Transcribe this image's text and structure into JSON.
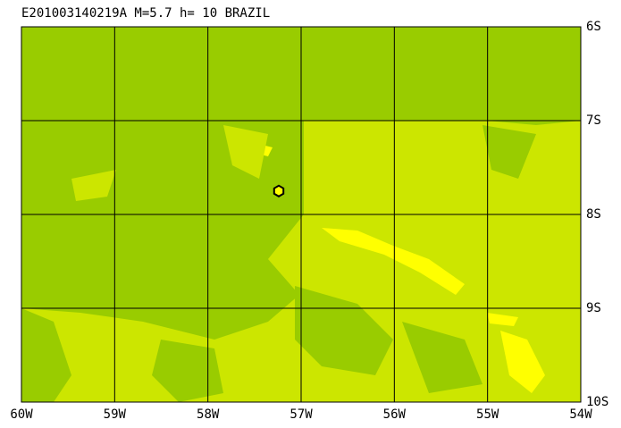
{
  "map": {
    "title": "E201003140219A  M=5.7  h= 10  BRAZIL",
    "xlim": [
      -60,
      -54
    ],
    "ylim": [
      -10,
      -6
    ],
    "xticks": [
      {
        "value": -60,
        "label": "60W"
      },
      {
        "value": -59,
        "label": "59W"
      },
      {
        "value": -58,
        "label": "58W"
      },
      {
        "value": -57,
        "label": "57W"
      },
      {
        "value": -56,
        "label": "56W"
      },
      {
        "value": -55,
        "label": "55W"
      },
      {
        "value": -54,
        "label": "54W"
      }
    ],
    "yticks": [
      {
        "value": -6,
        "label": "6S"
      },
      {
        "value": -7,
        "label": "7S"
      },
      {
        "value": -8,
        "label": "8S"
      },
      {
        "value": -9,
        "label": "9S"
      },
      {
        "value": -10,
        "label": "10S"
      }
    ],
    "event": {
      "lon": -57.24,
      "lat": -7.75
    }
  }
}
